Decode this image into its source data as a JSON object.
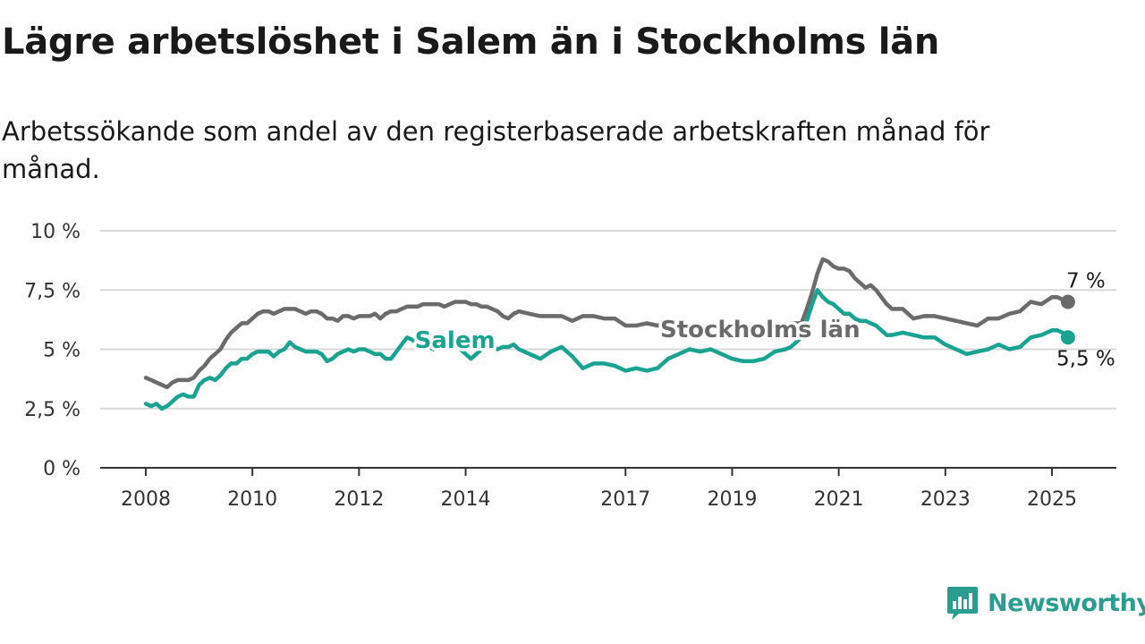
{
  "title": "Lägre arbetslöshet i Salem än i Stockholms län",
  "subtitle": "Arbetssökande som andel av den registerbaserade arbetskraften månad för månad.",
  "logo": {
    "text": "Newsworthy",
    "icon": "bar-chart-bubble-icon"
  },
  "chart_data": {
    "type": "line",
    "grid": true,
    "ylim": [
      0,
      10
    ],
    "y_ticks": [
      {
        "value": 0,
        "label": "0 %"
      },
      {
        "value": 2.5,
        "label": "2,5 %"
      },
      {
        "value": 5,
        "label": "5 %"
      },
      {
        "value": 7.5,
        "label": "7,5 %"
      },
      {
        "value": 10,
        "label": "10 %"
      }
    ],
    "xlim": [
      2008,
      2025.6
    ],
    "x_ticks": [
      {
        "value": 2008,
        "label": "2008"
      },
      {
        "value": 2010,
        "label": "2010"
      },
      {
        "value": 2012,
        "label": "2012"
      },
      {
        "value": 2014,
        "label": "2014"
      },
      {
        "value": 2017,
        "label": "2017"
      },
      {
        "value": 2019,
        "label": "2019"
      },
      {
        "value": 2021,
        "label": "2021"
      },
      {
        "value": 2023,
        "label": "2023"
      },
      {
        "value": 2025,
        "label": "2025"
      }
    ],
    "series": [
      {
        "name": "Stockholms län",
        "color": "#6b6b6b",
        "end_label": "7 %",
        "label_at": [
          2017.65,
          5.85
        ],
        "label_anchor": "start",
        "x": [
          2008.0,
          2008.1,
          2008.2,
          2008.3,
          2008.4,
          2008.5,
          2008.6,
          2008.7,
          2008.8,
          2008.9,
          2009.0,
          2009.1,
          2009.2,
          2009.3,
          2009.4,
          2009.5,
          2009.6,
          2009.7,
          2009.8,
          2009.9,
          2010.0,
          2010.1,
          2010.2,
          2010.3,
          2010.4,
          2010.5,
          2010.6,
          2010.7,
          2010.8,
          2010.9,
          2011.0,
          2011.1,
          2011.2,
          2011.3,
          2011.4,
          2011.5,
          2011.6,
          2011.7,
          2011.8,
          2011.9,
          2012.0,
          2012.1,
          2012.2,
          2012.3,
          2012.4,
          2012.5,
          2012.6,
          2012.7,
          2012.8,
          2012.9,
          2013.0,
          2013.1,
          2013.2,
          2013.3,
          2013.4,
          2013.5,
          2013.6,
          2013.7,
          2013.8,
          2013.9,
          2014.0,
          2014.1,
          2014.2,
          2014.3,
          2014.4,
          2014.5,
          2014.6,
          2014.7,
          2014.8,
          2014.9,
          2015.0,
          2015.2,
          2015.4,
          2015.6,
          2015.8,
          2016.0,
          2016.2,
          2016.4,
          2016.6,
          2016.8,
          2017.0,
          2017.2,
          2017.4,
          2017.6,
          2017.8,
          2018.0,
          2018.2,
          2018.4,
          2018.6,
          2018.8,
          2019.0,
          2019.2,
          2019.4,
          2019.6,
          2019.8,
          2020.0,
          2020.1,
          2020.2,
          2020.3,
          2020.4,
          2020.5,
          2020.6,
          2020.7,
          2020.8,
          2020.9,
          2021.0,
          2021.1,
          2021.2,
          2021.3,
          2021.4,
          2021.5,
          2021.6,
          2021.7,
          2021.8,
          2021.9,
          2022.0,
          2022.2,
          2022.4,
          2022.6,
          2022.8,
          2023.0,
          2023.2,
          2023.4,
          2023.6,
          2023.8,
          2024.0,
          2024.2,
          2024.4,
          2024.6,
          2024.8,
          2025.0,
          2025.1,
          2025.2,
          2025.3
        ],
        "y": [
          3.8,
          3.7,
          3.6,
          3.5,
          3.4,
          3.6,
          3.7,
          3.7,
          3.7,
          3.8,
          4.1,
          4.3,
          4.6,
          4.8,
          5.0,
          5.4,
          5.7,
          5.9,
          6.1,
          6.1,
          6.3,
          6.5,
          6.6,
          6.6,
          6.5,
          6.6,
          6.7,
          6.7,
          6.7,
          6.6,
          6.5,
          6.6,
          6.6,
          6.5,
          6.3,
          6.3,
          6.2,
          6.4,
          6.4,
          6.3,
          6.4,
          6.4,
          6.4,
          6.5,
          6.3,
          6.5,
          6.6,
          6.6,
          6.7,
          6.8,
          6.8,
          6.8,
          6.9,
          6.9,
          6.9,
          6.9,
          6.8,
          6.9,
          7.0,
          7.0,
          7.0,
          6.9,
          6.9,
          6.8,
          6.8,
          6.7,
          6.6,
          6.4,
          6.3,
          6.5,
          6.6,
          6.5,
          6.4,
          6.4,
          6.4,
          6.2,
          6.4,
          6.4,
          6.3,
          6.3,
          6.0,
          6.0,
          6.1,
          6.0,
          6.1,
          6.0,
          6.0,
          6.0,
          5.9,
          5.9,
          6.0,
          6.0,
          5.9,
          6.0,
          6.0,
          6.0,
          6.1,
          6.1,
          6.1,
          6.7,
          7.4,
          8.2,
          8.8,
          8.7,
          8.5,
          8.4,
          8.4,
          8.3,
          8.0,
          7.8,
          7.6,
          7.7,
          7.5,
          7.2,
          6.9,
          6.7,
          6.7,
          6.3,
          6.4,
          6.4,
          6.3,
          6.2,
          6.1,
          6.0,
          6.3,
          6.3,
          6.5,
          6.6,
          7.0,
          6.9,
          7.2,
          7.2,
          7.1,
          7.0
        ]
      },
      {
        "name": "Salem",
        "color": "#1ba392",
        "end_label": "5,5 %",
        "label_at": [
          2013.8,
          5.4
        ],
        "label_anchor": "middle",
        "x": [
          2008.0,
          2008.1,
          2008.2,
          2008.3,
          2008.4,
          2008.5,
          2008.6,
          2008.7,
          2008.8,
          2008.9,
          2009.0,
          2009.1,
          2009.2,
          2009.3,
          2009.4,
          2009.5,
          2009.6,
          2009.7,
          2009.8,
          2009.9,
          2010.0,
          2010.1,
          2010.2,
          2010.3,
          2010.4,
          2010.5,
          2010.6,
          2010.7,
          2010.8,
          2010.9,
          2011.0,
          2011.1,
          2011.2,
          2011.3,
          2011.4,
          2011.5,
          2011.6,
          2011.7,
          2011.8,
          2011.9,
          2012.0,
          2012.1,
          2012.2,
          2012.3,
          2012.4,
          2012.5,
          2012.6,
          2012.7,
          2012.8,
          2012.9,
          2013.0,
          2013.1,
          2013.2,
          2013.3,
          2013.4,
          2013.5,
          2013.6,
          2013.7,
          2013.8,
          2013.9,
          2014.0,
          2014.1,
          2014.2,
          2014.3,
          2014.4,
          2014.5,
          2014.6,
          2014.7,
          2014.8,
          2014.9,
          2015.0,
          2015.2,
          2015.4,
          2015.6,
          2015.8,
          2016.0,
          2016.2,
          2016.4,
          2016.6,
          2016.8,
          2017.0,
          2017.2,
          2017.4,
          2017.6,
          2017.8,
          2018.0,
          2018.2,
          2018.4,
          2018.6,
          2018.8,
          2019.0,
          2019.2,
          2019.4,
          2019.6,
          2019.8,
          2020.0,
          2020.1,
          2020.2,
          2020.3,
          2020.4,
          2020.5,
          2020.6,
          2020.7,
          2020.8,
          2020.9,
          2021.0,
          2021.1,
          2021.2,
          2021.3,
          2021.4,
          2021.5,
          2021.6,
          2021.7,
          2021.8,
          2021.9,
          2022.0,
          2022.2,
          2022.4,
          2022.6,
          2022.8,
          2023.0,
          2023.2,
          2023.4,
          2023.6,
          2023.8,
          2024.0,
          2024.2,
          2024.4,
          2024.6,
          2024.8,
          2025.0,
          2025.1,
          2025.2,
          2025.3
        ],
        "y": [
          2.7,
          2.6,
          2.7,
          2.5,
          2.6,
          2.8,
          3.0,
          3.1,
          3.0,
          3.0,
          3.5,
          3.7,
          3.8,
          3.7,
          3.9,
          4.2,
          4.4,
          4.4,
          4.6,
          4.6,
          4.8,
          4.9,
          4.9,
          4.9,
          4.7,
          4.9,
          5.0,
          5.3,
          5.1,
          5.0,
          4.9,
          4.9,
          4.9,
          4.8,
          4.5,
          4.6,
          4.8,
          4.9,
          5.0,
          4.9,
          5.0,
          5.0,
          4.9,
          4.8,
          4.8,
          4.6,
          4.6,
          4.9,
          5.2,
          5.5,
          5.4,
          5.2,
          5.3,
          5.1,
          5.0,
          5.1,
          5.2,
          5.3,
          5.3,
          5.0,
          4.8,
          4.6,
          4.8,
          5.0,
          5.1,
          5.1,
          5.0,
          5.1,
          5.1,
          5.2,
          5.0,
          4.8,
          4.6,
          4.9,
          5.1,
          4.7,
          4.2,
          4.4,
          4.4,
          4.3,
          4.1,
          4.2,
          4.1,
          4.2,
          4.6,
          4.8,
          5.0,
          4.9,
          5.0,
          4.8,
          4.6,
          4.5,
          4.5,
          4.6,
          4.9,
          5.0,
          5.1,
          5.3,
          5.5,
          6.2,
          6.9,
          7.5,
          7.2,
          7.0,
          6.9,
          6.7,
          6.5,
          6.5,
          6.3,
          6.2,
          6.2,
          6.1,
          6.0,
          5.8,
          5.6,
          5.6,
          5.7,
          5.6,
          5.5,
          5.5,
          5.2,
          5.0,
          4.8,
          4.9,
          5.0,
          5.2,
          5.0,
          5.1,
          5.5,
          5.6,
          5.8,
          5.8,
          5.7,
          5.5
        ]
      }
    ]
  }
}
